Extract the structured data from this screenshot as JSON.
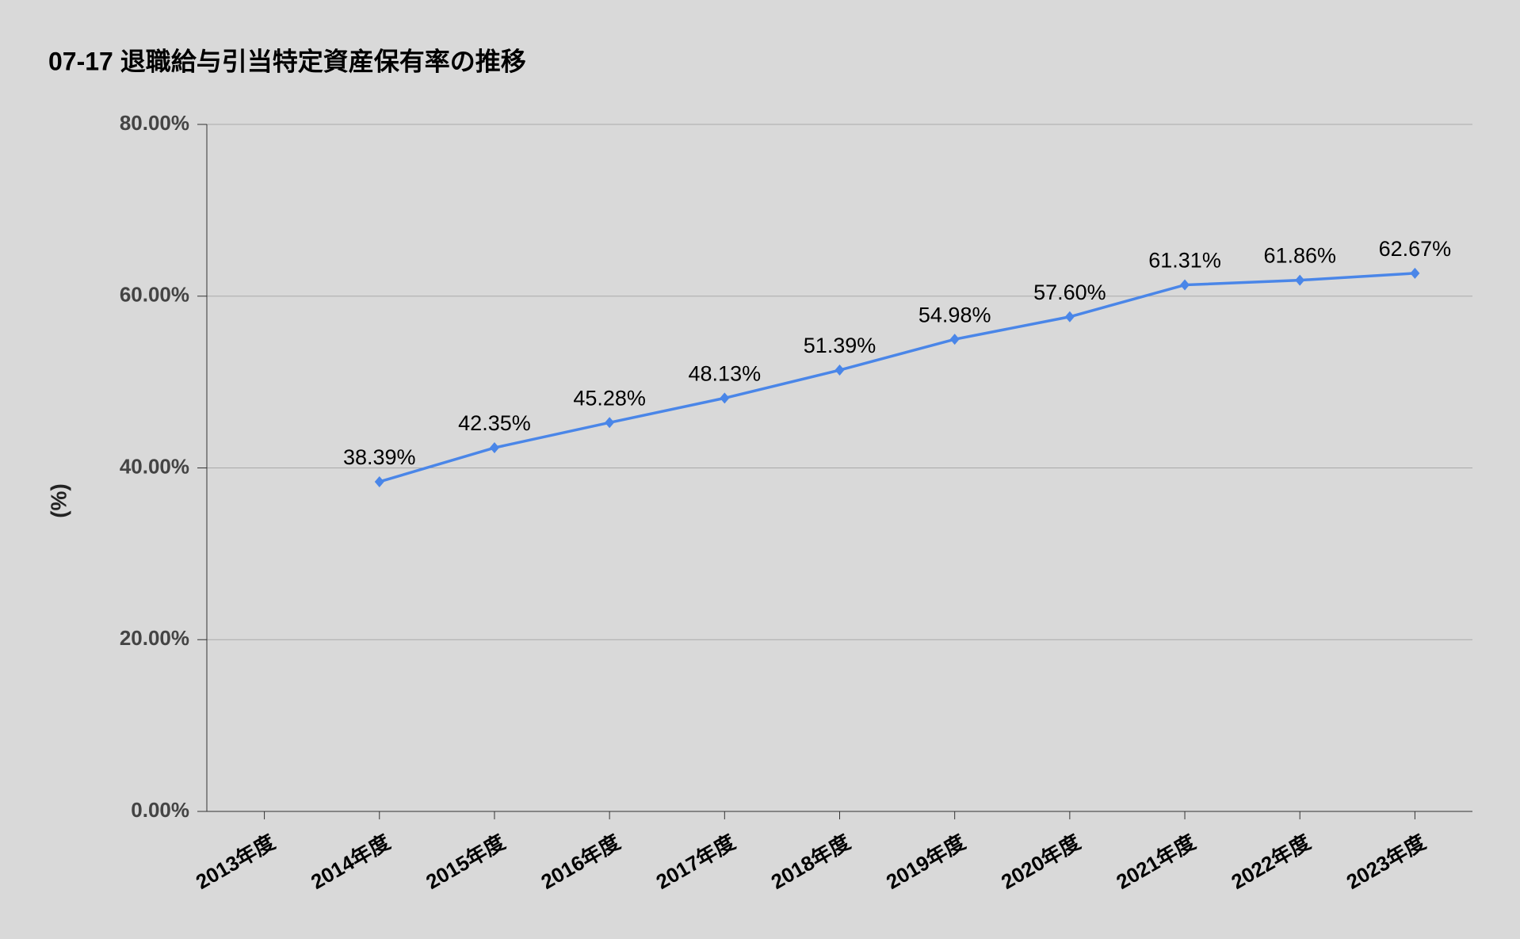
{
  "chart_data": {
    "type": "line",
    "title": "07-17 退職給与引当特定資産保有率の推移",
    "y_label": "(%)",
    "categories": [
      "2013年度",
      "2014年度",
      "2015年度",
      "2016年度",
      "2017年度",
      "2018年度",
      "2019年度",
      "2020年度",
      "2021年度",
      "2022年度",
      "2023年度"
    ],
    "series": [
      {
        "color": "#4a86e8",
        "values": [
          null,
          38.39,
          42.35,
          45.28,
          48.13,
          51.39,
          54.98,
          57.6,
          61.31,
          61.86,
          62.67
        ],
        "value_labels": [
          null,
          "38.39%",
          "42.35%",
          "45.28%",
          "48.13%",
          "51.39%",
          "54.98%",
          "57.60%",
          "61.31%",
          "61.86%",
          "62.67%"
        ]
      }
    ],
    "ylim": [
      0,
      80
    ],
    "yticks": [
      {
        "value": 0,
        "label": "0.00%"
      },
      {
        "value": 20,
        "label": "20.00%"
      },
      {
        "value": 40,
        "label": "40.00%"
      },
      {
        "value": 60,
        "label": "60.00%"
      },
      {
        "value": 80,
        "label": "80.00%"
      }
    ],
    "grid": true
  }
}
